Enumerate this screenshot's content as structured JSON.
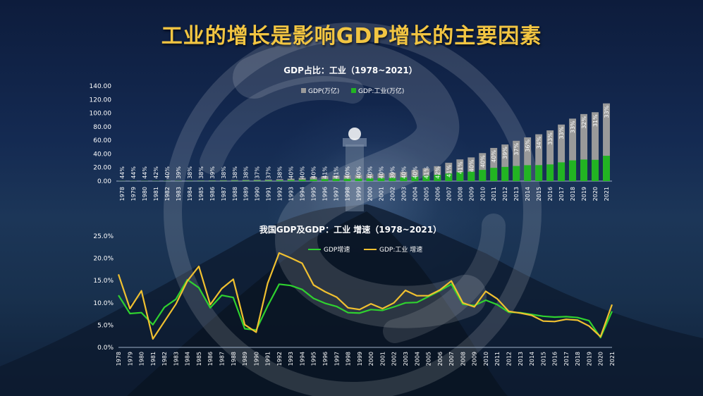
{
  "title": "工业的增长是影响GDP增长的主要因素",
  "chart_data": [
    {
      "type": "bar",
      "title": "GDP占比：工业（1978~2021）",
      "categories": [
        "1978",
        "1979",
        "1980",
        "1981",
        "1982",
        "1983",
        "1984",
        "1985",
        "1986",
        "1987",
        "1988",
        "1989",
        "1990",
        "1991",
        "1992",
        "1993",
        "1994",
        "1995",
        "1996",
        "1997",
        "1998",
        "1999",
        "2000",
        "2001",
        "2002",
        "2003",
        "2004",
        "2005",
        "2006",
        "2007",
        "2008",
        "2009",
        "2010",
        "2011",
        "2012",
        "2013",
        "2014",
        "2015",
        "2016",
        "2017",
        "2018",
        "2019",
        "2020",
        "2021"
      ],
      "series": [
        {
          "name": "GDP(万亿)",
          "color": "#9a9a9a",
          "values": [
            0.37,
            0.41,
            0.46,
            0.49,
            0.54,
            0.6,
            0.72,
            0.9,
            1.03,
            1.21,
            1.5,
            1.71,
            1.87,
            2.2,
            2.72,
            3.57,
            4.86,
            6.13,
            7.18,
            7.97,
            8.52,
            9.06,
            10.03,
            11.09,
            12.17,
            13.74,
            16.18,
            18.73,
            21.94,
            27.01,
            31.92,
            34.85,
            41.21,
            48.79,
            53.86,
            59.3,
            64.36,
            68.89,
            74.64,
            83.2,
            91.93,
            98.65,
            101.36,
            114.37
          ]
        },
        {
          "name": "GDP:工业(万亿)",
          "color": "#22b422",
          "values": [
            0.16,
            0.18,
            0.2,
            0.21,
            0.22,
            0.24,
            0.28,
            0.34,
            0.4,
            0.46,
            0.57,
            0.65,
            0.69,
            0.81,
            1.03,
            1.43,
            1.95,
            2.46,
            2.94,
            3.27,
            3.4,
            3.59,
            4.0,
            4.38,
            4.74,
            5.47,
            6.5,
            7.72,
            9.2,
            11.05,
            13.07,
            13.83,
            16.5,
            19.51,
            20.89,
            22.24,
            23.42,
            23.5,
            24.54,
            27.59,
            30.52,
            31.7,
            31.31,
            37.26
          ]
        }
      ],
      "labels": [
        "44%",
        "44%",
        "44%",
        "42%",
        "40%",
        "39%",
        "38%",
        "38%",
        "39%",
        "38%",
        "38%",
        "38%",
        "37%",
        "37%",
        "38%",
        "40%",
        "40%",
        "40%",
        "41%",
        "41%",
        "40%",
        "40%",
        "40%",
        "40%",
        "39%",
        "40%",
        "40%",
        "41%",
        "42%",
        "41%",
        "41%",
        "40%",
        "40%",
        "40%",
        "39%",
        "37%",
        "36%",
        "34%",
        "33%",
        "33%",
        "33%",
        "32%",
        "31%",
        "33%"
      ],
      "yticks": [
        "0.00",
        "20.00",
        "40.00",
        "60.00",
        "80.00",
        "100.00",
        "120.00",
        "140.00"
      ],
      "ylim": [
        0,
        140
      ],
      "legend": "top"
    },
    {
      "type": "line",
      "title": "我国GDP及GDP：工业 增速（1978~2021）",
      "categories": [
        "1978",
        "1979",
        "1980",
        "1981",
        "1982",
        "1983",
        "1984",
        "1985",
        "1986",
        "1987",
        "1988",
        "1989",
        "1990",
        "1991",
        "1992",
        "1993",
        "1994",
        "1995",
        "1996",
        "1997",
        "1998",
        "1999",
        "2000",
        "2001",
        "2002",
        "2003",
        "2004",
        "2005",
        "2006",
        "2007",
        "2008",
        "2009",
        "2010",
        "2011",
        "2012",
        "2013",
        "2014",
        "2015",
        "2016",
        "2017",
        "2018",
        "2019",
        "2020",
        "2021"
      ],
      "series": [
        {
          "name": "GDP增速",
          "color": "#2fd12f",
          "values": [
            11.7,
            7.6,
            7.8,
            5.1,
            9.0,
            10.8,
            15.2,
            13.4,
            8.9,
            11.7,
            11.2,
            4.2,
            3.9,
            9.3,
            14.2,
            13.9,
            13.0,
            11.0,
            9.9,
            9.2,
            7.8,
            7.7,
            8.5,
            8.3,
            9.1,
            10.0,
            10.1,
            11.4,
            12.7,
            14.2,
            9.7,
            9.4,
            10.6,
            9.6,
            7.9,
            7.8,
            7.4,
            7.0,
            6.8,
            6.9,
            6.7,
            6.0,
            2.2,
            8.1
          ]
        },
        {
          "name": "GDP:工业 增速",
          "color": "#f0c030",
          "values": [
            16.4,
            8.7,
            12.7,
            1.9,
            5.8,
            9.7,
            14.9,
            18.2,
            9.6,
            13.2,
            15.3,
            5.1,
            3.4,
            14.4,
            21.2,
            20.1,
            18.9,
            14.0,
            12.5,
            11.3,
            8.9,
            8.5,
            9.8,
            8.7,
            10.0,
            12.8,
            11.6,
            11.6,
            12.9,
            14.9,
            10.0,
            9.1,
            12.6,
            10.9,
            8.1,
            7.7,
            7.2,
            5.9,
            5.8,
            6.3,
            6.1,
            4.8,
            2.4,
            9.6
          ]
        }
      ],
      "yticks": [
        "0.0%",
        "5.0%",
        "10.0%",
        "15.0%",
        "20.0%",
        "25.0%"
      ],
      "ylim": [
        0,
        25
      ],
      "legend": "top"
    }
  ]
}
